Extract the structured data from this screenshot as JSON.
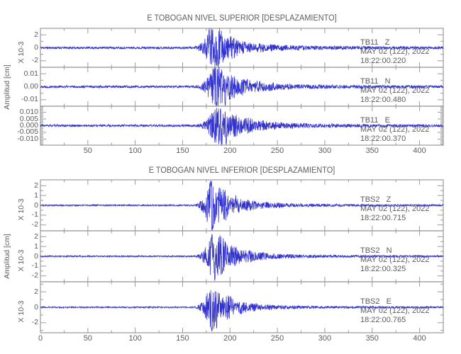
{
  "colors": {
    "waveform": "#3232cd",
    "frame": "#9a9a9a",
    "text": "#5d5d5d"
  },
  "chart_data": {
    "type": "line",
    "subtype": "seismogram-multitrace",
    "x_axis": {
      "range": [
        0,
        425
      ],
      "major_tick_step": 50,
      "minor_tick_step": 25,
      "unit": "s"
    },
    "ylabel": "Amplitud [cm]",
    "panels": [
      {
        "title": "E TOBOGAN NIVEL SUPERIOR [DESPLAZAMIENTO]",
        "amplitude_label": "Amplitud [cm]",
        "x_labels": [
          {
            "v": 50,
            "label": "50"
          },
          {
            "v": 100,
            "label": "100"
          },
          {
            "v": 150,
            "label": "150"
          },
          {
            "v": 200,
            "label": "200"
          },
          {
            "v": 250,
            "label": "250"
          },
          {
            "v": 300,
            "label": "300"
          },
          {
            "v": 350,
            "label": "350"
          },
          {
            "v": 400,
            "label": "400"
          }
        ],
        "traces": [
          {
            "station_label": "TB11   Z",
            "date": "MAY 02 (122), 2022",
            "time": "18:22:00.220",
            "scale_label": "X 10-3",
            "ylim": 3.0,
            "minor_step": 1.0,
            "yticks": [
              {
                "v": 2,
                "label": "2"
              },
              {
                "v": 0,
                "label": "0"
              },
              {
                "v": -2,
                "label": "-2"
              }
            ],
            "wave": {
              "seed": 11,
              "noise": 0.17,
              "t0": 160,
              "tp": 182,
              "tau": 20,
              "coda": 0.12,
              "codaTau": 95,
              "peak": 3.6,
              "spikes": [
                {
                  "t": 178,
                  "a": 3.0
                },
                {
                  "t": 187.5,
                  "a": -3.0
                }
              ]
            }
          },
          {
            "station_label": "TB11   N",
            "date": "MAY 02 (122), 2022",
            "time": "18:22:00.480",
            "scale_label": null,
            "ylim": 0.015,
            "minor_step": 0.005,
            "yticks": [
              {
                "v": 0.01,
                "label": "0.01"
              },
              {
                "v": 0,
                "label": "0.00"
              },
              {
                "v": -0.01,
                "label": "-0.01"
              }
            ],
            "wave": {
              "seed": 22,
              "noise": 0.0009,
              "t0": 162,
              "tp": 184,
              "tau": 24,
              "coda": 0.1,
              "codaTau": 90,
              "peak": 0.018,
              "spikes": [
                {
                  "t": 186,
                  "a": -0.015
                },
                {
                  "t": 195,
                  "a": -0.015
                },
                {
                  "t": 183,
                  "a": 0.014
                }
              ]
            }
          },
          {
            "station_label": "TB11   E",
            "date": "MAY 02 (122), 2022",
            "time": "18:22:00.370",
            "scale_label": null,
            "ylim": 0.0145,
            "minor_step": 0.001,
            "yticks": [
              {
                "v": 0.01,
                "label": "0.010"
              },
              {
                "v": 0.005,
                "label": "0.005"
              },
              {
                "v": 0,
                "label": "0.000"
              },
              {
                "v": -0.005,
                "label": "-0.005"
              },
              {
                "v": -0.01,
                "label": "-0.010"
              }
            ],
            "wave": {
              "seed": 33,
              "noise": 0.0008,
              "t0": 161,
              "tp": 186,
              "tau": 26,
              "coda": 0.11,
              "codaTau": 95,
              "peak": 0.015,
              "spikes": [
                {
                  "t": 196,
                  "a": -0.0145
                },
                {
                  "t": 190,
                  "a": 0.0132
                }
              ]
            }
          }
        ]
      },
      {
        "title": "E TOBOGAN NIVEL INFERIOR [DESPLAZAMIENTO]",
        "amplitude_label": "Amplitud [cm]",
        "x_labels": [
          {
            "v": 0,
            "label": "0"
          },
          {
            "v": 50,
            "label": "50"
          },
          {
            "v": 100,
            "label": "100"
          },
          {
            "v": 150,
            "label": "150"
          },
          {
            "v": 200,
            "label": "200"
          },
          {
            "v": 250,
            "label": "250"
          },
          {
            "v": 300,
            "label": "300"
          },
          {
            "v": 350,
            "label": "350"
          },
          {
            "v": 400,
            "label": "400"
          }
        ],
        "traces": [
          {
            "station_label": "TBS2   Z",
            "date": "MAY 02 (122), 2022",
            "time": "18:22:00.715",
            "scale_label": "X 10-3",
            "ylim": 2.6,
            "minor_step": 0.5,
            "yticks": [
              {
                "v": 2,
                "label": "2"
              },
              {
                "v": 1,
                "label": "1"
              },
              {
                "v": 0,
                "label": "0"
              },
              {
                "v": -1,
                "label": "-1"
              },
              {
                "v": -2,
                "label": "-2"
              }
            ],
            "wave": {
              "seed": 44,
              "noise": 0.075,
              "t0": 161,
              "tp": 181,
              "tau": 18,
              "coda": 0.09,
              "codaTau": 85,
              "peak": 3.1,
              "spikes": [
                {
                  "t": 179.5,
                  "a": 2.6
                },
                {
                  "t": 181.5,
                  "a": -2.6
                }
              ]
            }
          },
          {
            "station_label": "TBS2   N",
            "date": "MAY 02 (122), 2022",
            "time": "18:22:00.325",
            "scale_label": "X 10-3",
            "ylim": 2.6,
            "minor_step": 0.5,
            "yticks": [
              {
                "v": 2,
                "label": "2"
              },
              {
                "v": 1,
                "label": "1"
              },
              {
                "v": 0,
                "label": "0"
              },
              {
                "v": -1,
                "label": "-1"
              },
              {
                "v": -2,
                "label": "-2"
              }
            ],
            "wave": {
              "seed": 55,
              "noise": 0.075,
              "t0": 162,
              "tp": 183,
              "tau": 19,
              "coda": 0.09,
              "codaTau": 85,
              "peak": 2.9,
              "spikes": [
                {
                  "t": 181,
                  "a": 2.4
                },
                {
                  "t": 184,
                  "a": -2.6
                }
              ]
            }
          },
          {
            "station_label": "TBS2   E",
            "date": "MAY 02 (122), 2022",
            "time": "18:22:00.765",
            "scale_label": "X 10-3",
            "ylim": 3.3,
            "minor_step": 1.0,
            "yticks": [
              {
                "v": 2,
                "label": "2"
              },
              {
                "v": 0,
                "label": "0"
              },
              {
                "v": -2,
                "label": "-2"
              }
            ],
            "wave": {
              "seed": 66,
              "noise": 0.085,
              "t0": 161,
              "tp": 181,
              "tau": 18,
              "coda": 0.09,
              "codaTau": 85,
              "peak": 3.4,
              "spikes": [
                {
                  "t": 181,
                  "a": -3.3
                },
                {
                  "t": 178.5,
                  "a": 1.9
                }
              ]
            }
          }
        ]
      }
    ]
  }
}
